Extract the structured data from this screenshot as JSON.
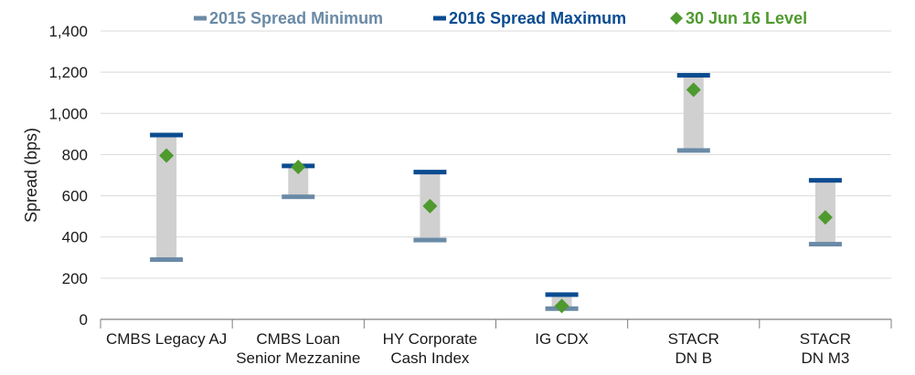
{
  "chart_data": {
    "type": "range",
    "title": "",
    "ylabel": "Spread (bps)",
    "xlabel": "",
    "ylim": [
      0,
      1400
    ],
    "yticks": [
      0,
      200,
      400,
      600,
      800,
      1000,
      1200,
      1400
    ],
    "ytick_labels": [
      "0",
      "200",
      "400",
      "600",
      "800",
      "1,000",
      "1,200",
      "1,400"
    ],
    "grid": true,
    "legend": [
      {
        "name": "2015 Spread Minimum",
        "color": "#6a8aa6",
        "marker": "dash"
      },
      {
        "name": "2016 Spread Maximum",
        "color": "#0a4c91",
        "marker": "dash"
      },
      {
        "name": "30 Jun 16 Level",
        "color": "#4e9a2e",
        "marker": "diamond"
      }
    ],
    "categories": [
      {
        "lines": [
          "CMBS Legacy AJ"
        ],
        "min": 290,
        "max": 895,
        "level": 795
      },
      {
        "lines": [
          "CMBS Loan",
          "Senior Mezzanine"
        ],
        "min": 595,
        "max": 745,
        "level": 740
      },
      {
        "lines": [
          "HY Corporate",
          "Cash Index"
        ],
        "min": 385,
        "max": 715,
        "level": 550
      },
      {
        "lines": [
          "IG CDX"
        ],
        "min": 52,
        "max": 120,
        "level": 65
      },
      {
        "lines": [
          "STACR",
          "DN B"
        ],
        "min": 820,
        "max": 1185,
        "level": 1115
      },
      {
        "lines": [
          "STACR",
          "DN M3"
        ],
        "min": 365,
        "max": 675,
        "level": 495
      }
    ],
    "colors": {
      "range_bar": "#d0d0d0",
      "min_mark": "#6a8aa6",
      "max_mark": "#0a4c91",
      "level_mark": "#4e9a2e",
      "grid": "#d9d9d9",
      "axis": "#7f7f7f"
    }
  }
}
